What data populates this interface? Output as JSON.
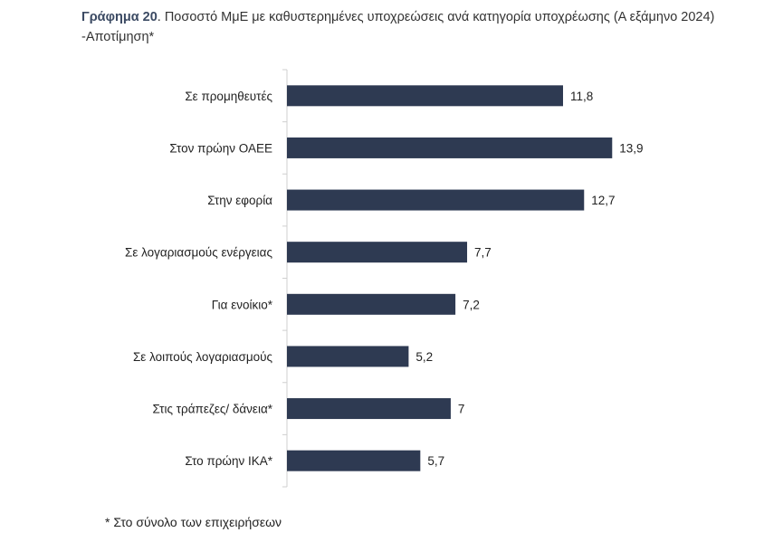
{
  "header": {
    "figure_label": "Γράφημα 20",
    "title": ". Ποσοστό ΜμΕ με καθυστερημένες υποχρεώσεις ανά κατηγορία υποχρέωσης (Α εξάμηνο 2024) -Αποτίμηση*"
  },
  "footnote": "* Στο σύνολο των επιχειρήσεων",
  "chart_data": {
    "type": "bar",
    "orientation": "horizontal",
    "categories": [
      "Σε προμηθευτές",
      "Στον πρώην ΟΑΕΕ",
      "Στην εφορία",
      "Σε λογαριασμούς  ενέργειας",
      "Για ενοίκιο*",
      "Σε λοιπούς λογαριασμούς",
      "Στις τράπεζες/ δάνεια*",
      "Στο πρώην ΙΚΑ*"
    ],
    "values": [
      11.8,
      13.9,
      12.7,
      7.7,
      7.2,
      5.2,
      7,
      5.7
    ],
    "value_labels": [
      "11,8",
      "13,9",
      "12,7",
      "7,7",
      "7,2",
      "5,2",
      "7",
      "5,7"
    ],
    "bar_color": "#2e3a52",
    "axis_color": "#cfcfcf",
    "xlim": [
      0,
      15
    ],
    "grid": false,
    "title": "",
    "xlabel": "",
    "ylabel": ""
  }
}
